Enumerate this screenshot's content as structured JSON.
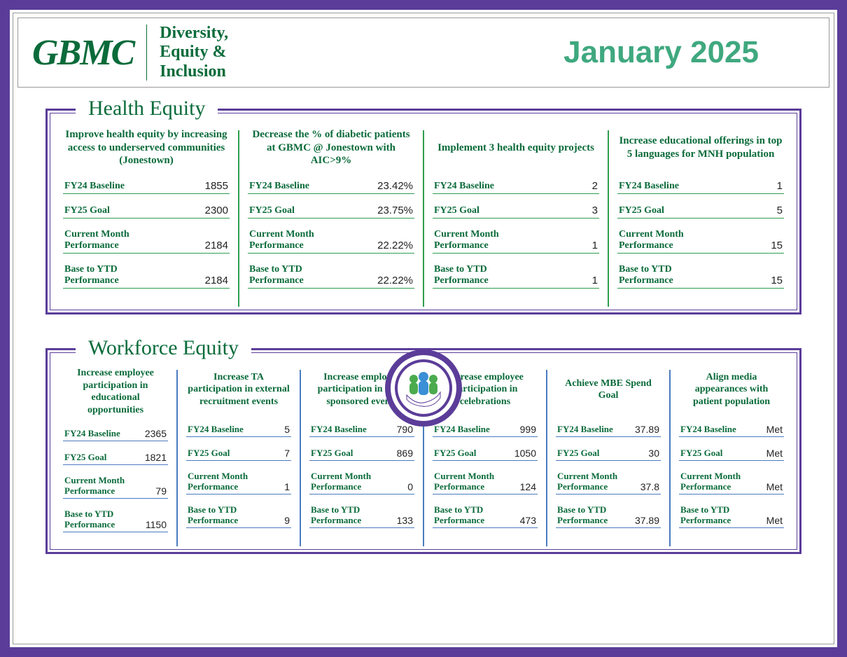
{
  "header": {
    "logo_text": "GBMC",
    "dei_line1": "Diversity,",
    "dei_line2": "Equity &",
    "dei_line3": "Inclusion",
    "month": "January 2025"
  },
  "colors": {
    "frame": "#5b3d99",
    "brand_green": "#0a6b3a",
    "accent_green": "#2e9d4e",
    "accent_blue": "#4a7bbf",
    "month_teal": "#3fa87f"
  },
  "labels": {
    "fy24_baseline": "FY24 Baseline",
    "fy25_goal": "FY25 Goal",
    "current_month": "Current Month Performance",
    "base_ytd": "Base to YTD Performance"
  },
  "sections": {
    "health": {
      "title": "Health Equity",
      "cards": [
        {
          "title": "Improve health equity by increasing access to underserved communities  (Jonestown)",
          "baseline": "1855",
          "goal": "2300",
          "current": "2184",
          "ytd": "2184"
        },
        {
          "title": "Decrease the % of diabetic patients at GBMC @ Jonestown with AIC>9%",
          "baseline": "23.42%",
          "goal": "23.75%",
          "current": "22.22%",
          "ytd": "22.22%"
        },
        {
          "title": "Implement 3 health equity projects",
          "baseline": "2",
          "goal": "3",
          "current": "1",
          "ytd": "1"
        },
        {
          "title": "Increase educational offerings in top 5 languages for MNH population",
          "baseline": "1",
          "goal": "5",
          "current": "15",
          "ytd": "15"
        }
      ]
    },
    "workforce": {
      "title": "Workforce Equity",
      "cards": [
        {
          "title": "Increase employee participation in educational opportunities",
          "baseline": "2365",
          "goal": "1821",
          "current": "79",
          "ytd": "1150"
        },
        {
          "title": "Increase TA participation in external recruitment events",
          "baseline": "5",
          "goal": "7",
          "current": "1",
          "ytd": "9"
        },
        {
          "title": "Increase employee participation in ERG sponsored events",
          "baseline": "790",
          "goal": "869",
          "current": "0",
          "ytd": "133"
        },
        {
          "title": "Increase employee participation in celebrations",
          "baseline": "999",
          "goal": "1050",
          "current": "124",
          "ytd": "473"
        },
        {
          "title": "Achieve MBE Spend Goal",
          "baseline": "37.89",
          "goal": "30",
          "current": "37.8",
          "ytd": "37.89"
        },
        {
          "title": "Align media appearances with patient population",
          "baseline": "Met",
          "goal": "Met",
          "current": "Met",
          "ytd": "Met"
        }
      ]
    }
  }
}
